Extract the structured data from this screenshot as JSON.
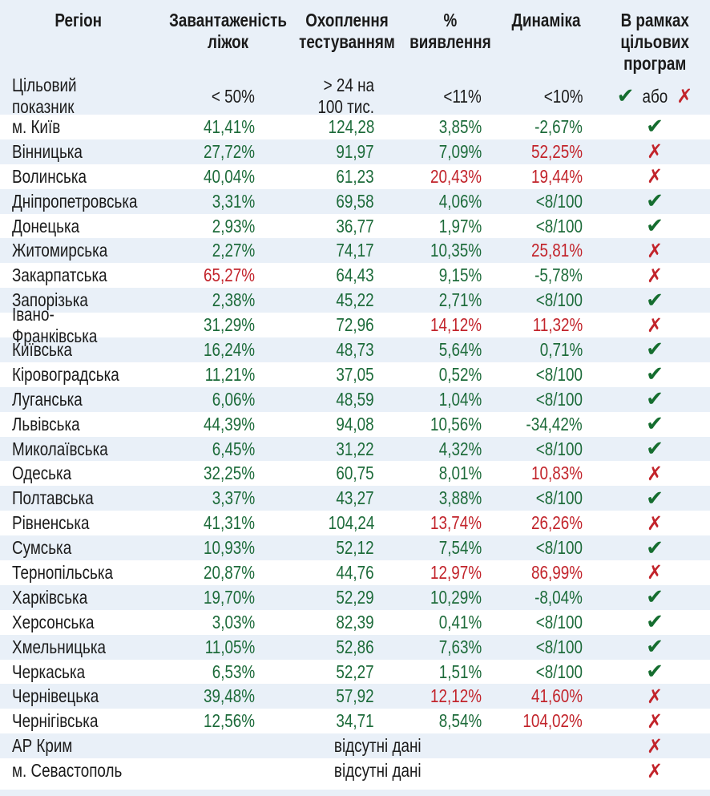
{
  "colors": {
    "stripe": "#e9f0f8",
    "green": "#1d6b3a",
    "red": "#c2242b"
  },
  "icons": {
    "check": "✔",
    "cross": "✗"
  },
  "chart_data": {
    "type": "table",
    "columns": [
      {
        "id": "region",
        "label": "Регіон"
      },
      {
        "id": "beds",
        "label": "Завантаженість\nліжок"
      },
      {
        "id": "testing",
        "label": "Охоплення\nтестуванням"
      },
      {
        "id": "detection",
        "label": "%\nвиявлення"
      },
      {
        "id": "dynamics",
        "label": "Динаміка"
      },
      {
        "id": "program",
        "label": "В рамках\nцільових\nпрограм"
      }
    ],
    "target_row": {
      "label": "Цільовий показник",
      "beds": "< 50%",
      "testing": "> 24 на 100 тис.",
      "detection": "<11%",
      "dynamics": "<10%",
      "or_label": "або"
    },
    "no_data_label": "відсутні дані",
    "rows": [
      {
        "region": "м. Київ",
        "beds": "41,41%",
        "beds_ok": true,
        "testing": "124,28",
        "testing_ok": true,
        "detection": "3,85%",
        "detection_ok": true,
        "dynamics": "-2,67%",
        "dynamics_ok": true,
        "status": "pass"
      },
      {
        "region": "Вінницька",
        "beds": "27,72%",
        "beds_ok": true,
        "testing": "91,97",
        "testing_ok": true,
        "detection": "7,09%",
        "detection_ok": true,
        "dynamics": "52,25%",
        "dynamics_ok": false,
        "status": "fail"
      },
      {
        "region": "Волинська",
        "beds": "40,04%",
        "beds_ok": true,
        "testing": "61,23",
        "testing_ok": true,
        "detection": "20,43%",
        "detection_ok": false,
        "dynamics": "19,44%",
        "dynamics_ok": false,
        "status": "fail"
      },
      {
        "region": "Дніпропетровська",
        "beds": "3,31%",
        "beds_ok": true,
        "testing": "69,58",
        "testing_ok": true,
        "detection": "4,06%",
        "detection_ok": true,
        "dynamics": "<8/100",
        "dynamics_ok": true,
        "status": "pass"
      },
      {
        "region": "Донецька",
        "beds": "2,93%",
        "beds_ok": true,
        "testing": "36,77",
        "testing_ok": true,
        "detection": "1,97%",
        "detection_ok": true,
        "dynamics": "<8/100",
        "dynamics_ok": true,
        "status": "pass"
      },
      {
        "region": "Житомирська",
        "beds": "2,27%",
        "beds_ok": true,
        "testing": "74,17",
        "testing_ok": true,
        "detection": "10,35%",
        "detection_ok": true,
        "dynamics": "25,81%",
        "dynamics_ok": false,
        "status": "fail"
      },
      {
        "region": "Закарпатська",
        "beds": "65,27%",
        "beds_ok": false,
        "testing": "64,43",
        "testing_ok": true,
        "detection": "9,15%",
        "detection_ok": true,
        "dynamics": "-5,78%",
        "dynamics_ok": true,
        "status": "fail"
      },
      {
        "region": "Запорізька",
        "beds": "2,38%",
        "beds_ok": true,
        "testing": "45,22",
        "testing_ok": true,
        "detection": "2,71%",
        "detection_ok": true,
        "dynamics": "<8/100",
        "dynamics_ok": true,
        "status": "pass"
      },
      {
        "region": "Івано-Франківська",
        "beds": "31,29%",
        "beds_ok": true,
        "testing": "72,96",
        "testing_ok": true,
        "detection": "14,12%",
        "detection_ok": false,
        "dynamics": "11,32%",
        "dynamics_ok": false,
        "status": "fail"
      },
      {
        "region": "Київська",
        "beds": "16,24%",
        "beds_ok": true,
        "testing": "48,73",
        "testing_ok": true,
        "detection": "5,64%",
        "detection_ok": true,
        "dynamics": "0,71%",
        "dynamics_ok": true,
        "status": "pass"
      },
      {
        "region": "Кіровоградська",
        "beds": "11,21%",
        "beds_ok": true,
        "testing": "37,05",
        "testing_ok": true,
        "detection": "0,52%",
        "detection_ok": true,
        "dynamics": "<8/100",
        "dynamics_ok": true,
        "status": "pass"
      },
      {
        "region": "Луганська",
        "beds": "6,06%",
        "beds_ok": true,
        "testing": "48,59",
        "testing_ok": true,
        "detection": "1,04%",
        "detection_ok": true,
        "dynamics": "<8/100",
        "dynamics_ok": true,
        "status": "pass"
      },
      {
        "region": "Львівська",
        "beds": "44,39%",
        "beds_ok": true,
        "testing": "94,08",
        "testing_ok": true,
        "detection": "10,56%",
        "detection_ok": true,
        "dynamics": "-34,42%",
        "dynamics_ok": true,
        "status": "pass"
      },
      {
        "region": "Миколаївська",
        "beds": "6,45%",
        "beds_ok": true,
        "testing": "31,22",
        "testing_ok": true,
        "detection": "4,32%",
        "detection_ok": true,
        "dynamics": "<8/100",
        "dynamics_ok": true,
        "status": "pass"
      },
      {
        "region": "Одеська",
        "beds": "32,25%",
        "beds_ok": true,
        "testing": "60,75",
        "testing_ok": true,
        "detection": "8,01%",
        "detection_ok": true,
        "dynamics": "10,83%",
        "dynamics_ok": false,
        "status": "fail"
      },
      {
        "region": "Полтавська",
        "beds": "3,37%",
        "beds_ok": true,
        "testing": "43,27",
        "testing_ok": true,
        "detection": "3,88%",
        "detection_ok": true,
        "dynamics": "<8/100",
        "dynamics_ok": true,
        "status": "pass"
      },
      {
        "region": "Рівненська",
        "beds": "41,31%",
        "beds_ok": true,
        "testing": "104,24",
        "testing_ok": true,
        "detection": "13,74%",
        "detection_ok": false,
        "dynamics": "26,26%",
        "dynamics_ok": false,
        "status": "fail"
      },
      {
        "region": "Сумська",
        "beds": "10,93%",
        "beds_ok": true,
        "testing": "52,12",
        "testing_ok": true,
        "detection": "7,54%",
        "detection_ok": true,
        "dynamics": "<8/100",
        "dynamics_ok": true,
        "status": "pass"
      },
      {
        "region": "Тернопільська",
        "beds": "20,87%",
        "beds_ok": true,
        "testing": "44,76",
        "testing_ok": true,
        "detection": "12,97%",
        "detection_ok": false,
        "dynamics": "86,99%",
        "dynamics_ok": false,
        "status": "fail"
      },
      {
        "region": "Харківська",
        "beds": "19,70%",
        "beds_ok": true,
        "testing": "52,29",
        "testing_ok": true,
        "detection": "10,29%",
        "detection_ok": true,
        "dynamics": "-8,04%",
        "dynamics_ok": true,
        "status": "pass"
      },
      {
        "region": "Херсонська",
        "beds": "3,03%",
        "beds_ok": true,
        "testing": "82,39",
        "testing_ok": true,
        "detection": "0,41%",
        "detection_ok": true,
        "dynamics": "<8/100",
        "dynamics_ok": true,
        "status": "pass"
      },
      {
        "region": "Хмельницька",
        "beds": "11,05%",
        "beds_ok": true,
        "testing": "52,86",
        "testing_ok": true,
        "detection": "7,63%",
        "detection_ok": true,
        "dynamics": "<8/100",
        "dynamics_ok": true,
        "status": "pass"
      },
      {
        "region": "Черкаська",
        "beds": "6,53%",
        "beds_ok": true,
        "testing": "52,27",
        "testing_ok": true,
        "detection": "1,51%",
        "detection_ok": true,
        "dynamics": "<8/100",
        "dynamics_ok": true,
        "status": "pass"
      },
      {
        "region": "Чернівецька",
        "beds": "39,48%",
        "beds_ok": true,
        "testing": "57,92",
        "testing_ok": true,
        "detection": "12,12%",
        "detection_ok": false,
        "dynamics": "41,60%",
        "dynamics_ok": false,
        "status": "fail"
      },
      {
        "region": "Чернігівська",
        "beds": "12,56%",
        "beds_ok": true,
        "testing": "34,71",
        "testing_ok": true,
        "detection": "8,54%",
        "detection_ok": true,
        "dynamics": "104,02%",
        "dynamics_ok": false,
        "status": "fail"
      },
      {
        "region": "АР Крим",
        "no_data": true,
        "status": "fail"
      },
      {
        "region": "м. Севастополь",
        "no_data": true,
        "status": "fail"
      }
    ]
  }
}
